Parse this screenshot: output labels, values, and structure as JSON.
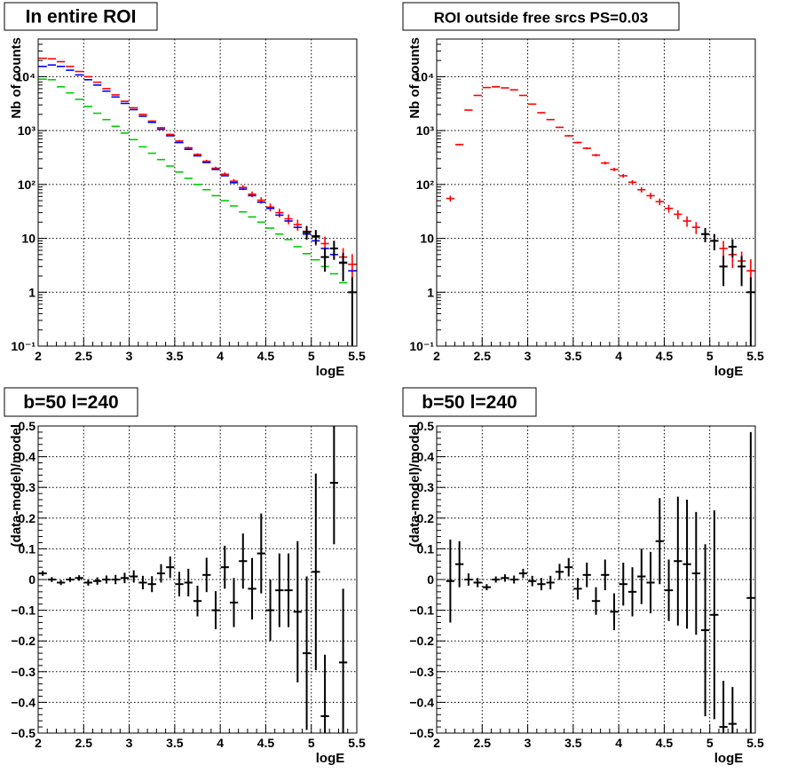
{
  "chart_data": [
    {
      "type": "scatter",
      "id": "top-left",
      "title": "In entire ROI",
      "xlabel": "logE",
      "ylabel": "Nb of counts",
      "xlim": [
        2,
        5.5
      ],
      "ylim": [
        0.1,
        50000
      ],
      "yscale": "log",
      "grid": true,
      "x_ticks": [
        "2",
        "2.5",
        "3",
        "3.5",
        "4",
        "4.5",
        "5",
        "5.5"
      ],
      "y_ticks": [
        "10⁻¹",
        "1",
        "10",
        "10²",
        "10³",
        "10⁴"
      ],
      "x_step": 0.1,
      "series": [
        {
          "color": "#ff0000",
          "x": [
            2.05,
            2.15,
            2.25,
            2.35,
            2.45,
            2.55,
            2.65,
            2.75,
            2.85,
            2.95,
            3.05,
            3.15,
            3.25,
            3.35,
            3.45,
            3.55,
            3.65,
            3.75,
            3.85,
            3.95,
            4.05,
            4.15,
            4.25,
            4.35,
            4.45,
            4.55,
            4.65,
            4.75,
            4.85,
            4.95,
            5.05,
            5.15,
            5.25,
            5.35,
            5.45
          ],
          "y": [
            22000,
            21500,
            19000,
            15500,
            12500,
            10000,
            7900,
            6000,
            4600,
            3500,
            2650,
            2000,
            1500,
            1130,
            850,
            640,
            480,
            360,
            270,
            200,
            155,
            115,
            88,
            66,
            51,
            38,
            30,
            23,
            18,
            13.5,
            10.5,
            8,
            6.5,
            4.5,
            3.3
          ],
          "err": [
            150,
            150,
            140,
            125,
            110,
            100,
            89,
            77,
            68,
            59,
            51,
            45,
            39,
            34,
            29,
            25,
            22,
            19,
            16,
            14,
            12.5,
            11,
            9.4,
            8.1,
            7.1,
            6.2,
            5.5,
            4.8,
            4.2,
            3.7,
            3.2,
            2.8,
            2.5,
            2.1,
            1.8
          ]
        },
        {
          "color": "#0000ff",
          "x": [
            2.05,
            2.15,
            2.25,
            2.35,
            2.45,
            2.55,
            2.65,
            2.75,
            2.85,
            2.95,
            3.05,
            3.15,
            3.25,
            3.35,
            3.45,
            3.55,
            3.65,
            3.75,
            3.85,
            3.95,
            4.05,
            4.15,
            4.25,
            4.35,
            4.45,
            4.55,
            4.65,
            4.75,
            4.85,
            4.95,
            5.05,
            5.15,
            5.25,
            5.35,
            5.45
          ],
          "y": [
            15500,
            16500,
            15500,
            13200,
            10800,
            8800,
            7000,
            5400,
            4200,
            3200,
            2450,
            1850,
            1420,
            1060,
            800,
            600,
            450,
            340,
            255,
            190,
            145,
            108,
            82,
            62,
            47,
            36,
            27,
            21,
            16,
            12,
            9,
            6.5,
            5,
            3.6,
            2.5
          ],
          "err": [
            0,
            0,
            0,
            0,
            0,
            0,
            0,
            0,
            0,
            0,
            0,
            0,
            0,
            0,
            0,
            0,
            0,
            0,
            0,
            0,
            0,
            0,
            0,
            0,
            0,
            0,
            0,
            0,
            0,
            0,
            0,
            0,
            0,
            0,
            0
          ]
        },
        {
          "color": "#00cc00",
          "x": [
            2.05,
            2.15,
            2.25,
            2.35,
            2.45,
            2.55,
            2.65,
            2.75,
            2.85,
            2.95,
            3.05,
            3.15,
            3.25,
            3.35,
            3.45,
            3.55,
            3.65,
            3.75,
            3.85,
            3.95,
            4.05,
            4.15,
            4.25,
            4.35,
            4.45,
            4.55,
            4.65,
            4.75,
            4.85,
            4.95,
            5.05,
            5.15,
            5.25,
            5.35,
            5.45
          ],
          "y": [
            9000,
            8800,
            6500,
            5000,
            3800,
            2800,
            2100,
            1600,
            1200,
            900,
            680,
            500,
            380,
            290,
            220,
            170,
            130,
            100,
            80,
            62,
            50,
            40,
            31,
            25,
            20,
            15.5,
            12,
            9.5,
            7,
            5.2,
            4,
            3,
            2.2,
            1.5,
            1
          ],
          "err": [
            0,
            0,
            0,
            0,
            0,
            0,
            0,
            0,
            0,
            0,
            0,
            0,
            0,
            0,
            0,
            0,
            0,
            0,
            0,
            0,
            0,
            0,
            0,
            0,
            0,
            0,
            0,
            0,
            0,
            0,
            0,
            0,
            0,
            0,
            0
          ]
        },
        {
          "color": "#000000",
          "x": [
            4.95,
            5.05,
            5.15,
            5.25,
            5.35,
            5.45
          ],
          "y": [
            13,
            11,
            4.5,
            6.5,
            3.5,
            1
          ],
          "err": [
            3.6,
            3.3,
            2.1,
            2.5,
            1.9,
            0.9
          ]
        }
      ]
    },
    {
      "type": "scatter",
      "id": "top-right",
      "title": "ROI outside free srcs PS=0.03",
      "xlabel": "logE",
      "ylabel": "Nb of counts",
      "xlim": [
        2,
        5.5
      ],
      "ylim": [
        0.1,
        50000
      ],
      "yscale": "log",
      "grid": true,
      "x_ticks": [
        "2",
        "2.5",
        "3",
        "3.5",
        "4",
        "4.5",
        "5",
        "5.5"
      ],
      "y_ticks": [
        "10⁻¹",
        "1",
        "10",
        "10²",
        "10³",
        "10⁴"
      ],
      "x_step": 0.1,
      "series": [
        {
          "color": "#ff0000",
          "x": [
            2.15,
            2.25,
            2.35,
            2.45,
            2.55,
            2.65,
            2.75,
            2.85,
            2.95,
            3.05,
            3.15,
            3.25,
            3.35,
            3.45,
            3.55,
            3.65,
            3.75,
            3.85,
            3.95,
            4.05,
            4.15,
            4.25,
            4.35,
            4.45,
            4.55,
            4.65,
            4.75,
            4.85,
            4.95,
            5.05,
            5.15,
            5.25,
            5.35,
            5.45
          ],
          "y": [
            55,
            550,
            2400,
            4500,
            6300,
            6500,
            6200,
            5700,
            4500,
            3100,
            2150,
            1600,
            1150,
            800,
            600,
            470,
            350,
            250,
            190,
            145,
            110,
            80,
            62,
            48,
            36,
            28,
            21,
            16,
            12,
            9,
            6.5,
            5,
            3.8,
            2.5
          ],
          "err": [
            7,
            23,
            49,
            67,
            79,
            81,
            79,
            75,
            67,
            56,
            46,
            40,
            34,
            28,
            24,
            22,
            19,
            16,
            14,
            12,
            10.5,
            9,
            7.9,
            6.9,
            6,
            5.3,
            4.6,
            4,
            3.5,
            3,
            2.5,
            2.2,
            1.9,
            1.6
          ]
        },
        {
          "color": "#000000",
          "x": [
            4.95,
            5.05,
            5.15,
            5.25,
            5.35,
            5.45
          ],
          "y": [
            12,
            9,
            3,
            7,
            3,
            1
          ],
          "err": [
            3.5,
            3,
            1.7,
            2.6,
            1.7,
            0.9
          ]
        }
      ]
    },
    {
      "type": "scatter",
      "id": "bottom-left",
      "title": "b=50 l=240",
      "xlabel": "logE",
      "ylabel": "(data-model)/model",
      "xlim": [
        2,
        5.5
      ],
      "ylim": [
        -0.5,
        0.5
      ],
      "yscale": "linear",
      "grid": true,
      "x_ticks": [
        "2",
        "2.5",
        "3",
        "3.5",
        "4",
        "4.5",
        "5",
        "5.5"
      ],
      "y_ticks": [
        "-0.5",
        "-0.4",
        "-0.3",
        "-0.2",
        "-0.1",
        "0",
        "0.1",
        "0.2",
        "0.3",
        "0.4",
        "0.5"
      ],
      "x_step": 0.1,
      "series": [
        {
          "color": "#000000",
          "x": [
            2.05,
            2.15,
            2.25,
            2.35,
            2.45,
            2.55,
            2.65,
            2.75,
            2.85,
            2.95,
            3.05,
            3.15,
            3.25,
            3.35,
            3.45,
            3.55,
            3.65,
            3.75,
            3.85,
            3.95,
            4.05,
            4.15,
            4.25,
            4.35,
            4.45,
            4.55,
            4.65,
            4.75,
            4.85,
            4.95,
            5.05,
            5.15,
            5.25,
            5.35
          ],
          "y": [
            0.02,
            0.0,
            -0.01,
            0.0,
            0.005,
            -0.01,
            -0.005,
            0.0,
            0.0,
            0.005,
            0.01,
            -0.01,
            -0.015,
            0.02,
            0.04,
            -0.015,
            -0.01,
            -0.07,
            0.015,
            -0.1,
            0.04,
            -0.075,
            0.06,
            -0.03,
            0.085,
            -0.1,
            -0.035,
            -0.035,
            -0.105,
            -0.24,
            0.025,
            -0.445,
            0.315,
            -0.27
          ],
          "err": [
            0.008,
            0.008,
            0.008,
            0.008,
            0.009,
            0.01,
            0.012,
            0.013,
            0.015,
            0.017,
            0.02,
            0.022,
            0.026,
            0.03,
            0.035,
            0.04,
            0.045,
            0.05,
            0.056,
            0.062,
            0.07,
            0.08,
            0.09,
            0.1,
            0.13,
            0.1,
            0.12,
            0.12,
            0.23,
            0.25,
            0.32,
            0.2,
            0.2,
            0.24
          ]
        }
      ]
    },
    {
      "type": "scatter",
      "id": "bottom-right",
      "title": "b=50 l=240",
      "xlabel": "logE",
      "ylabel": "(data-model)/model",
      "xlim": [
        2,
        5.5
      ],
      "ylim": [
        -0.5,
        0.5
      ],
      "yscale": "linear",
      "grid": true,
      "x_ticks": [
        "2",
        "2.5",
        "3",
        "3.5",
        "4",
        "4.5",
        "5",
        "5.5"
      ],
      "y_ticks": [
        "-0.5",
        "-0.4",
        "-0.3",
        "-0.2",
        "-0.1",
        "0",
        "0.1",
        "0.2",
        "0.3",
        "0.4",
        "0.5"
      ],
      "x_step": 0.1,
      "series": [
        {
          "color": "#000000",
          "x": [
            2.15,
            2.25,
            2.35,
            2.45,
            2.55,
            2.65,
            2.75,
            2.85,
            2.95,
            3.05,
            3.15,
            3.25,
            3.35,
            3.45,
            3.55,
            3.65,
            3.75,
            3.85,
            3.95,
            4.05,
            4.15,
            4.25,
            4.35,
            4.45,
            4.55,
            4.65,
            4.75,
            4.85,
            4.95,
            5.05,
            5.15,
            5.25,
            5.45
          ],
          "y": [
            -0.005,
            0.05,
            0.0,
            -0.01,
            -0.025,
            0.0,
            0.005,
            0.0,
            0.02,
            -0.005,
            -0.015,
            -0.01,
            0.025,
            0.04,
            -0.03,
            0.015,
            -0.07,
            0.015,
            -0.105,
            -0.015,
            -0.04,
            0.01,
            -0.01,
            0.125,
            -0.035,
            0.06,
            0.05,
            0.02,
            -0.165,
            -0.115,
            -0.48,
            -0.47,
            -0.06
          ],
          "err": [
            0.135,
            0.075,
            0.02,
            0.015,
            0.01,
            0.01,
            0.012,
            0.013,
            0.015,
            0.017,
            0.02,
            0.022,
            0.026,
            0.03,
            0.035,
            0.04,
            0.045,
            0.05,
            0.06,
            0.07,
            0.08,
            0.09,
            0.1,
            0.14,
            0.1,
            0.21,
            0.21,
            0.2,
            0.28,
            0.34,
            0.15,
            0.12,
            0.54
          ]
        }
      ]
    }
  ]
}
